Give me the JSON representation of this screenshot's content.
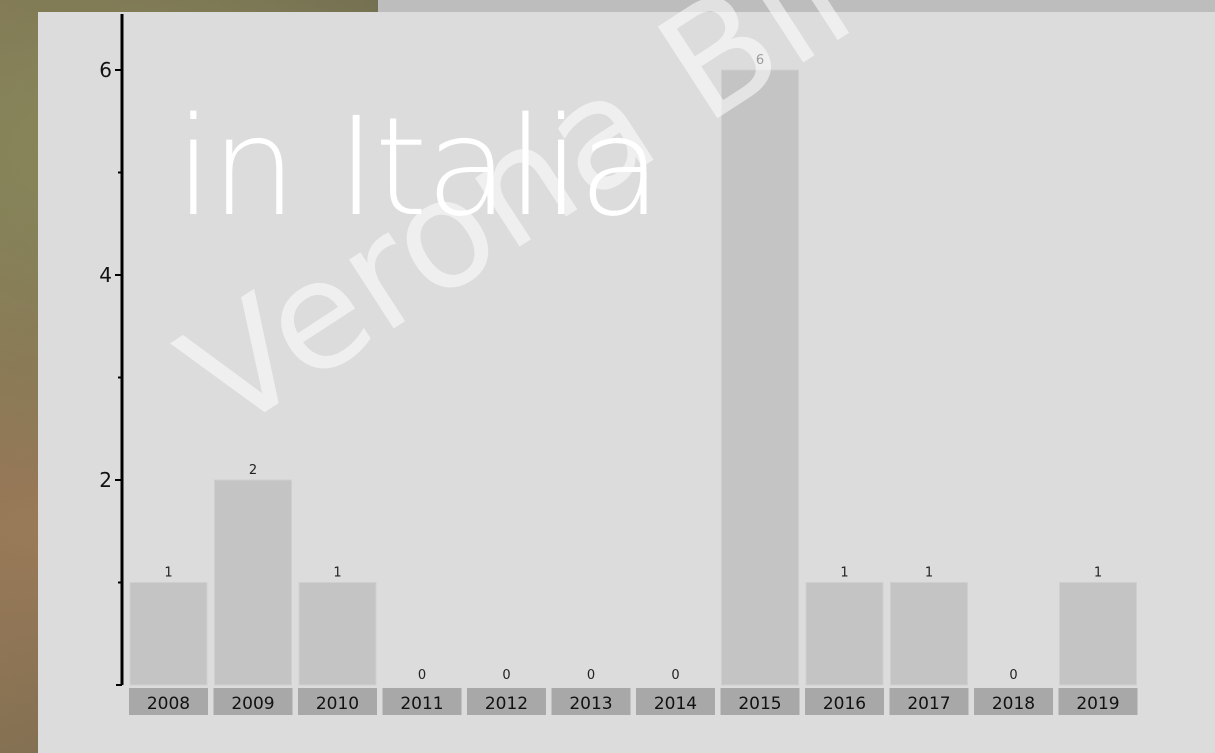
{
  "chart_data": {
    "type": "bar",
    "categories": [
      "2008",
      "2009",
      "2010",
      "2011",
      "2012",
      "2013",
      "2014",
      "2015",
      "2016",
      "2017",
      "2018",
      "2019"
    ],
    "values": [
      1,
      2,
      1,
      0,
      0,
      0,
      0,
      6,
      1,
      1,
      0,
      1
    ],
    "data_labels": [
      "1",
      "2",
      "1",
      "0",
      "0",
      "0",
      "0",
      "6",
      "1",
      "1",
      "0",
      "1"
    ],
    "y_ticks": [
      2,
      4,
      6
    ],
    "y_tick_labels": [
      "2",
      "4",
      "6"
    ],
    "ylim": [
      0,
      6.6
    ],
    "grid": false,
    "bar_color": "#c4c4c4",
    "category_label_bg": "#a8a8a8",
    "panel_color": "#dcdcdc"
  },
  "overlay": {
    "title": "in Italia",
    "watermark": "Verona Birdwa"
  }
}
